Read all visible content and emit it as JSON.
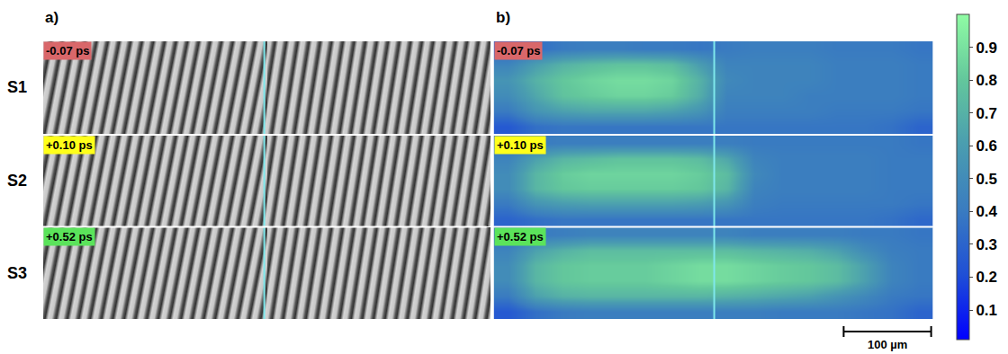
{
  "chart_data": {
    "type": "heatmap",
    "panel_labels": [
      "a)",
      "b)"
    ],
    "tick_labels": false,
    "rows": [
      {
        "name": "S1",
        "delay": "-0.07 ps",
        "color": "#d9676a",
        "cells": [
          [
            0.3,
            0.35,
            0.4,
            0.42,
            0.42,
            0.4,
            0.4,
            0.38,
            0.4,
            0.42,
            0.42,
            0.42,
            0.4,
            0.4,
            0.4,
            0.38
          ],
          [
            0.45,
            0.6,
            0.7,
            0.75,
            0.78,
            0.78,
            0.75,
            0.6,
            0.45,
            0.45,
            0.45,
            0.45,
            0.42,
            0.42,
            0.42,
            0.4
          ],
          [
            0.55,
            0.7,
            0.8,
            0.85,
            0.88,
            0.88,
            0.85,
            0.7,
            0.48,
            0.45,
            0.45,
            0.45,
            0.42,
            0.42,
            0.42,
            0.4
          ],
          [
            0.5,
            0.65,
            0.78,
            0.82,
            0.85,
            0.85,
            0.82,
            0.68,
            0.45,
            0.45,
            0.45,
            0.42,
            0.42,
            0.42,
            0.42,
            0.4
          ],
          [
            0.4,
            0.55,
            0.62,
            0.65,
            0.65,
            0.65,
            0.62,
            0.55,
            0.42,
            0.42,
            0.42,
            0.42,
            0.4,
            0.4,
            0.4,
            0.38
          ],
          [
            0.25,
            0.35,
            0.38,
            0.38,
            0.38,
            0.38,
            0.38,
            0.38,
            0.38,
            0.38,
            0.38,
            0.38,
            0.38,
            0.38,
            0.36,
            0.3
          ]
        ]
      },
      {
        "name": "S2",
        "delay": "+0.10 ps",
        "color": "#ffff1a",
        "cells": [
          [
            0.35,
            0.4,
            0.42,
            0.42,
            0.42,
            0.42,
            0.42,
            0.42,
            0.42,
            0.4,
            0.4,
            0.4,
            0.4,
            0.4,
            0.4,
            0.38
          ],
          [
            0.45,
            0.62,
            0.72,
            0.75,
            0.78,
            0.78,
            0.78,
            0.75,
            0.65,
            0.45,
            0.42,
            0.42,
            0.42,
            0.42,
            0.4,
            0.4
          ],
          [
            0.5,
            0.72,
            0.82,
            0.85,
            0.85,
            0.85,
            0.85,
            0.82,
            0.75,
            0.48,
            0.42,
            0.42,
            0.42,
            0.42,
            0.4,
            0.4
          ],
          [
            0.5,
            0.72,
            0.8,
            0.82,
            0.82,
            0.82,
            0.82,
            0.8,
            0.72,
            0.45,
            0.42,
            0.42,
            0.42,
            0.42,
            0.4,
            0.4
          ],
          [
            0.4,
            0.55,
            0.6,
            0.62,
            0.62,
            0.62,
            0.62,
            0.6,
            0.55,
            0.42,
            0.4,
            0.4,
            0.4,
            0.4,
            0.4,
            0.38
          ],
          [
            0.3,
            0.35,
            0.38,
            0.38,
            0.38,
            0.38,
            0.38,
            0.38,
            0.38,
            0.38,
            0.38,
            0.38,
            0.38,
            0.38,
            0.36,
            0.32
          ]
        ]
      },
      {
        "name": "S3",
        "delay": "+0.52 ps",
        "color": "#5be35b",
        "cells": [
          [
            0.3,
            0.4,
            0.42,
            0.45,
            0.45,
            0.45,
            0.45,
            0.45,
            0.45,
            0.42,
            0.42,
            0.42,
            0.42,
            0.4,
            0.4,
            0.38
          ],
          [
            0.45,
            0.62,
            0.7,
            0.75,
            0.75,
            0.75,
            0.75,
            0.75,
            0.75,
            0.72,
            0.7,
            0.68,
            0.62,
            0.5,
            0.42,
            0.4
          ],
          [
            0.5,
            0.72,
            0.8,
            0.82,
            0.82,
            0.82,
            0.85,
            0.88,
            0.88,
            0.85,
            0.82,
            0.8,
            0.75,
            0.62,
            0.45,
            0.4
          ],
          [
            0.5,
            0.72,
            0.8,
            0.82,
            0.82,
            0.82,
            0.85,
            0.88,
            0.88,
            0.85,
            0.82,
            0.8,
            0.75,
            0.62,
            0.45,
            0.4
          ],
          [
            0.4,
            0.62,
            0.7,
            0.72,
            0.72,
            0.72,
            0.72,
            0.72,
            0.7,
            0.68,
            0.65,
            0.62,
            0.55,
            0.48,
            0.4,
            0.38
          ],
          [
            0.25,
            0.35,
            0.4,
            0.42,
            0.42,
            0.42,
            0.42,
            0.42,
            0.42,
            0.42,
            0.4,
            0.4,
            0.4,
            0.38,
            0.36,
            0.3
          ]
        ]
      }
    ],
    "colorbar_range": [
      0.01,
      1.0
    ],
    "colorbar_ticks": [
      0.1,
      0.2,
      0.3,
      0.4,
      0.5,
      0.6,
      0.7,
      0.8,
      0.9
    ],
    "scale_bar": "100 µm"
  }
}
